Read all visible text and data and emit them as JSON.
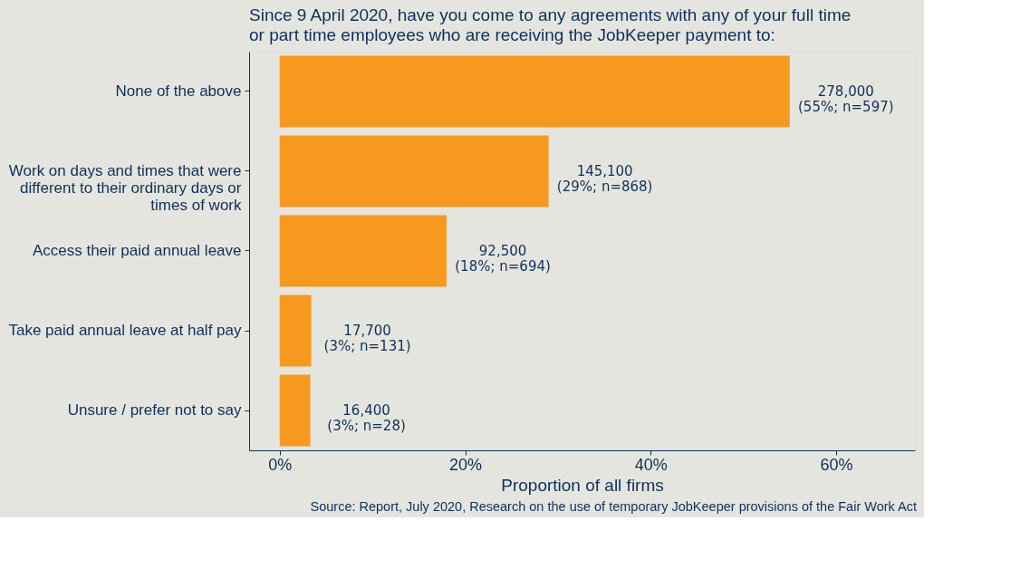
{
  "chart_data": {
    "type": "bar",
    "orientation": "horizontal",
    "title": "Since 9 April 2020, have you come to any agreements with any of your full time or part time employees who are receiving the JobKeeper payment to:",
    "xlabel": "Proportion of all firms",
    "categories": [
      "None of the above",
      "Work on days and times that were different to their ordinary days or times of work",
      "Access their paid annual leave",
      "Take paid annual leave at half pay",
      "Unsure / prefer not to say"
    ],
    "values": [
      55,
      29,
      18,
      3.4,
      3.3
    ],
    "value_labels": [
      "278,000\n(55%; n=597)",
      "145,100\n(29%; n=868)",
      "92,500\n(18%; n=694)",
      "17,700\n(3%; n=131)",
      "16,400\n(3%; n=28)"
    ],
    "color": "#f7991f",
    "xlim": [
      -3.3,
      68.5
    ],
    "xticks": [
      {
        "value": 0,
        "label": "0%"
      },
      {
        "value": 20,
        "label": "20%"
      },
      {
        "value": 40,
        "label": "40%"
      },
      {
        "value": 60,
        "label": "60%"
      }
    ],
    "grid": false,
    "annotations": [
      "Source: Report, July 2020, Research on the use of temporary JobKeeper provisions of the Fair Work Act"
    ]
  }
}
